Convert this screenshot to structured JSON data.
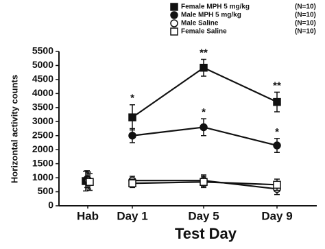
{
  "chart_data": {
    "type": "line",
    "y_label": "Horizontal activity counts",
    "x_label": "Test Day",
    "categories": [
      "Hab",
      "Day 1",
      "Day 5",
      "Day 9"
    ],
    "ylim": [
      0,
      5500
    ],
    "yticks": [
      0,
      500,
      1000,
      1500,
      2000,
      2500,
      3000,
      3500,
      4000,
      4500,
      5000,
      5500
    ],
    "series": [
      {
        "name": "Female MPH 5 mg/kg",
        "n_label": "(N=10)",
        "marker": "square",
        "filled": true,
        "color": "#111111",
        "values": [
          880,
          3150,
          4920,
          3700
        ],
        "errors": [
          350,
          450,
          300,
          350
        ],
        "value_annotations": [
          null,
          "*",
          "**",
          "**"
        ]
      },
      {
        "name": "Male MPH 5 mg/kg",
        "n_label": "(N=10)",
        "marker": "circle",
        "filled": true,
        "color": "#111111",
        "values": [
          950,
          2500,
          2800,
          2150
        ],
        "errors": [
          300,
          250,
          300,
          250
        ],
        "value_annotations": [
          null,
          null,
          "*",
          "*"
        ]
      },
      {
        "name": "Male Saline",
        "n_label": "(N=10)",
        "marker": "circle",
        "filled": false,
        "color": "#111111",
        "values": [
          900,
          900,
          900,
          600
        ],
        "errors": [
          300,
          150,
          200,
          200
        ],
        "value_annotations": [
          null,
          null,
          null,
          null
        ]
      },
      {
        "name": "Female Saline",
        "n_label": "(N=10)",
        "marker": "square",
        "filled": false,
        "color": "#111111",
        "values": [
          850,
          800,
          850,
          750
        ],
        "errors": [
          300,
          150,
          200,
          200
        ],
        "value_annotations": [
          null,
          null,
          null,
          null
        ]
      }
    ]
  }
}
